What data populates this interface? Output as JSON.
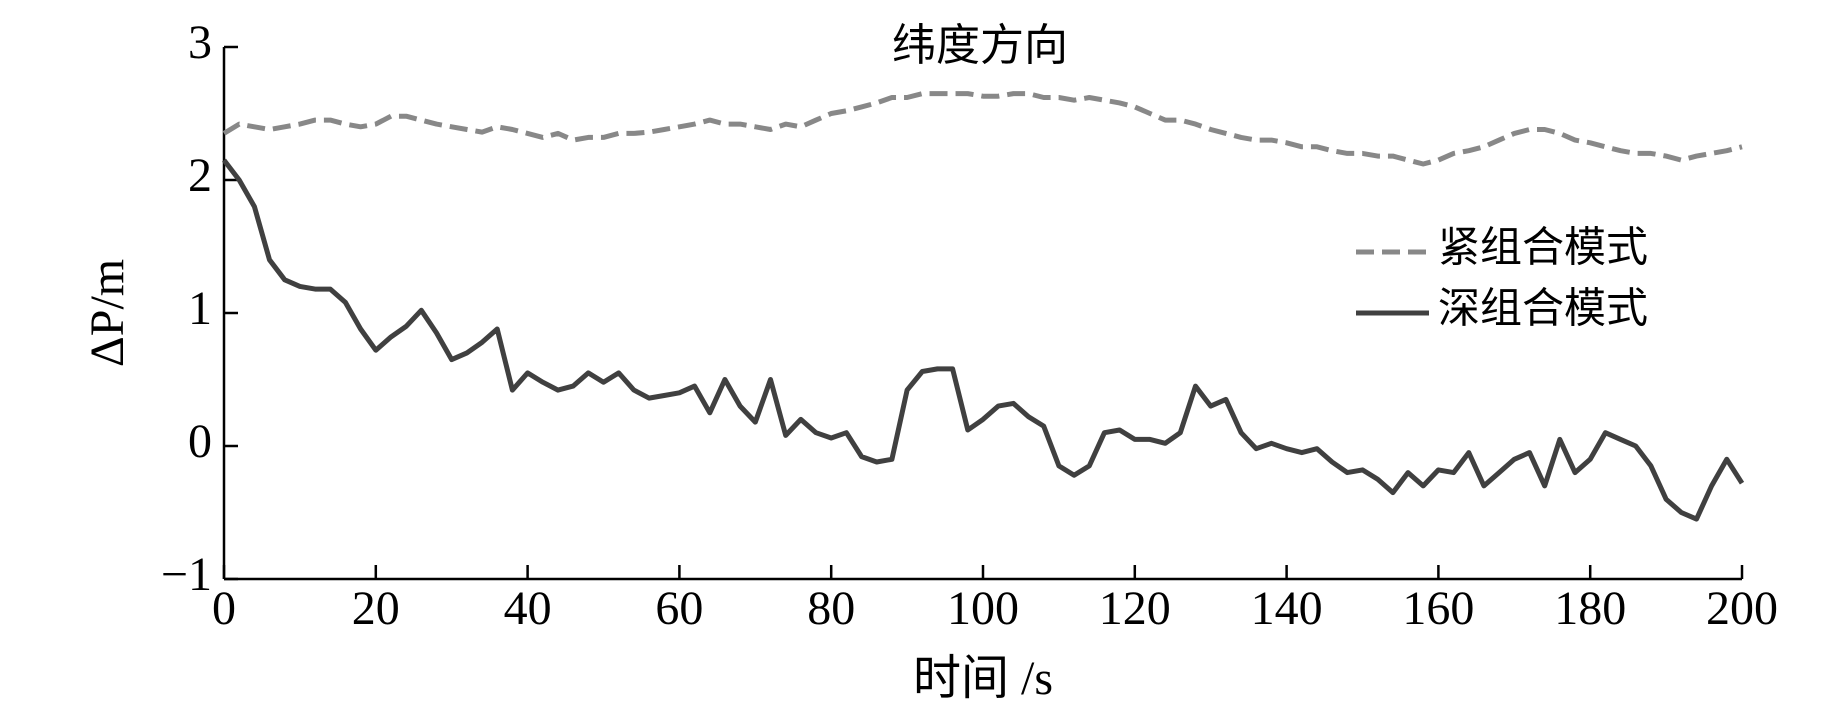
{
  "chart_data": {
    "type": "line",
    "title": "纬度方向",
    "xlabel": "时间 /s",
    "ylabel": "ΔP/m",
    "x": [
      0,
      2,
      4,
      6,
      8,
      10,
      12,
      14,
      16,
      18,
      20,
      22,
      24,
      26,
      28,
      30,
      32,
      34,
      36,
      38,
      40,
      42,
      44,
      46,
      48,
      50,
      52,
      54,
      56,
      58,
      60,
      62,
      64,
      66,
      68,
      70,
      72,
      74,
      76,
      78,
      80,
      82,
      84,
      86,
      88,
      90,
      92,
      94,
      96,
      98,
      100,
      102,
      104,
      106,
      108,
      110,
      112,
      114,
      116,
      118,
      120,
      122,
      124,
      126,
      128,
      130,
      132,
      134,
      136,
      138,
      140,
      142,
      144,
      146,
      148,
      150,
      152,
      154,
      156,
      158,
      160,
      162,
      164,
      166,
      168,
      170,
      172,
      174,
      176,
      178,
      180,
      182,
      184,
      186,
      188,
      190,
      192,
      194,
      196,
      198,
      200
    ],
    "series": [
      {
        "name": "紧组合模式",
        "color": "#888888",
        "dash": true,
        "values": [
          2.35,
          2.42,
          2.4,
          2.38,
          2.4,
          2.42,
          2.45,
          2.45,
          2.42,
          2.4,
          2.42,
          2.48,
          2.48,
          2.45,
          2.42,
          2.4,
          2.38,
          2.36,
          2.4,
          2.38,
          2.35,
          2.32,
          2.35,
          2.3,
          2.32,
          2.32,
          2.35,
          2.35,
          2.36,
          2.38,
          2.4,
          2.42,
          2.45,
          2.42,
          2.42,
          2.4,
          2.38,
          2.42,
          2.4,
          2.45,
          2.5,
          2.52,
          2.55,
          2.58,
          2.62,
          2.62,
          2.65,
          2.65,
          2.65,
          2.65,
          2.63,
          2.63,
          2.65,
          2.65,
          2.62,
          2.62,
          2.6,
          2.62,
          2.6,
          2.58,
          2.55,
          2.5,
          2.45,
          2.45,
          2.42,
          2.38,
          2.35,
          2.32,
          2.3,
          2.3,
          2.28,
          2.25,
          2.25,
          2.22,
          2.2,
          2.2,
          2.18,
          2.18,
          2.15,
          2.12,
          2.15,
          2.2,
          2.22,
          2.25,
          2.3,
          2.35,
          2.38,
          2.38,
          2.35,
          2.3,
          2.28,
          2.25,
          2.22,
          2.2,
          2.2,
          2.18,
          2.15,
          2.18,
          2.2,
          2.22,
          2.25
        ]
      },
      {
        "name": "深组合模式",
        "color": "#404040",
        "dash": false,
        "values": [
          2.15,
          2.0,
          1.8,
          1.4,
          1.25,
          1.2,
          1.18,
          1.18,
          1.08,
          0.88,
          0.72,
          0.82,
          0.9,
          1.02,
          0.85,
          0.65,
          0.7,
          0.78,
          0.88,
          0.42,
          0.55,
          0.48,
          0.42,
          0.45,
          0.55,
          0.48,
          0.55,
          0.42,
          0.36,
          0.38,
          0.4,
          0.45,
          0.25,
          0.5,
          0.3,
          0.18,
          0.5,
          0.08,
          0.2,
          0.1,
          0.06,
          0.1,
          -0.08,
          -0.12,
          -0.1,
          0.42,
          0.56,
          0.58,
          0.58,
          0.12,
          0.2,
          0.3,
          0.32,
          0.22,
          0.15,
          -0.15,
          -0.22,
          -0.15,
          0.1,
          0.12,
          0.05,
          0.05,
          0.02,
          0.1,
          0.45,
          0.3,
          0.35,
          0.1,
          -0.02,
          0.02,
          -0.02,
          -0.05,
          -0.02,
          -0.12,
          -0.2,
          -0.18,
          -0.25,
          -0.35,
          -0.2,
          -0.3,
          -0.18,
          -0.2,
          -0.05,
          -0.3,
          -0.2,
          -0.1,
          -0.05,
          -0.3,
          0.05,
          -0.2,
          -0.1,
          0.1,
          0.05,
          0.0,
          -0.15,
          -0.4,
          -0.5,
          -0.55,
          -0.3,
          -0.1,
          -0.28
        ]
      }
    ],
    "xlim": [
      0,
      200
    ],
    "xticks": [
      0,
      20,
      40,
      60,
      80,
      100,
      120,
      140,
      160,
      180,
      200
    ],
    "ylim": [
      -1,
      3
    ],
    "yticks": [
      {
        "value": -1,
        "label": "−1"
      },
      0,
      1,
      2,
      3
    ],
    "grid": false,
    "legend": "right"
  }
}
